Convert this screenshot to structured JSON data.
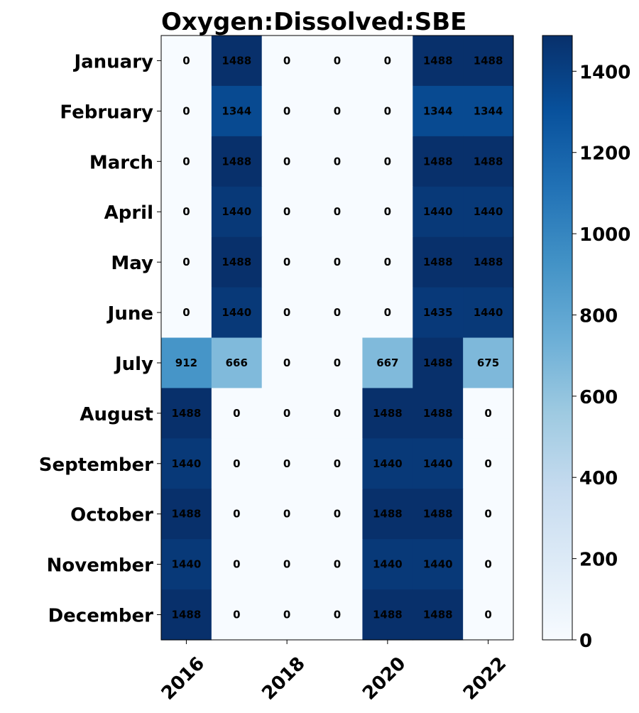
{
  "chart_data": {
    "type": "heatmap",
    "title": "Oxygen:Dissolved:SBE",
    "x": [
      "2016",
      "2017",
      "2018",
      "2019",
      "2020",
      "2021",
      "2022"
    ],
    "x_tick_labels": [
      "2016",
      "2018",
      "2020",
      "2022"
    ],
    "y": [
      "January",
      "February",
      "March",
      "April",
      "May",
      "June",
      "July",
      "August",
      "September",
      "October",
      "November",
      "December"
    ],
    "values": [
      [
        0,
        1488,
        0,
        0,
        0,
        1488,
        1488
      ],
      [
        0,
        1344,
        0,
        0,
        0,
        1344,
        1344
      ],
      [
        0,
        1488,
        0,
        0,
        0,
        1488,
        1488
      ],
      [
        0,
        1440,
        0,
        0,
        0,
        1440,
        1440
      ],
      [
        0,
        1488,
        0,
        0,
        0,
        1488,
        1488
      ],
      [
        0,
        1440,
        0,
        0,
        0,
        1435,
        1440
      ],
      [
        912,
        666,
        0,
        0,
        667,
        1488,
        675
      ],
      [
        1488,
        0,
        0,
        0,
        1488,
        1488,
        0
      ],
      [
        1440,
        0,
        0,
        0,
        1440,
        1440,
        0
      ],
      [
        1488,
        0,
        0,
        0,
        1488,
        1488,
        0
      ],
      [
        1440,
        0,
        0,
        0,
        1440,
        1440,
        0
      ],
      [
        1488,
        0,
        0,
        0,
        1488,
        1488,
        0
      ]
    ],
    "colorbar": {
      "range": [
        0,
        1488
      ],
      "ticks": [
        0,
        200,
        400,
        600,
        800,
        1000,
        1200,
        1400
      ],
      "colormap": "Blues",
      "colors": [
        "#f7fbff",
        "#deebf7",
        "#c6dbef",
        "#9ecae1",
        "#6baed6",
        "#4292c6",
        "#2171b5",
        "#08519c",
        "#08306b"
      ]
    },
    "xlabel": "",
    "ylabel": ""
  }
}
